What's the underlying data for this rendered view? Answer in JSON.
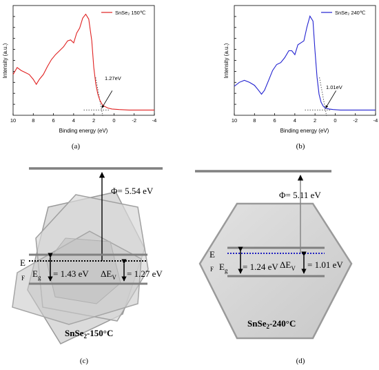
{
  "chart_data": [
    {
      "type": "line",
      "panel": "(a)",
      "xlabel": "Binding energy (eV)",
      "ylabel": "Intensity (a.u.)",
      "xlim": [
        10,
        -4
      ],
      "xticks": [
        "10",
        "8",
        "6",
        "4",
        "2",
        "0",
        "-2",
        "-4"
      ],
      "series": [
        {
          "name": "SnSe₂ 150℃",
          "color": "#e02020",
          "x": [
            10,
            9.6,
            9.2,
            8.8,
            8.4,
            8.0,
            7.7,
            7.4,
            7.0,
            6.6,
            6.2,
            5.8,
            5.4,
            5.0,
            4.6,
            4.3,
            4.0,
            3.7,
            3.4,
            3.1,
            2.8,
            2.5,
            2.2,
            2.0,
            1.8,
            1.6,
            1.4,
            1.2,
            1.0,
            0.6,
            0.2,
            -0.5,
            -1.5,
            -2.5,
            -4
          ],
          "y": [
            0.38,
            0.45,
            0.42,
            0.4,
            0.38,
            0.33,
            0.28,
            0.33,
            0.38,
            0.46,
            0.53,
            0.58,
            0.62,
            0.66,
            0.72,
            0.73,
            0.7,
            0.8,
            0.85,
            0.95,
            0.99,
            0.94,
            0.72,
            0.45,
            0.28,
            0.18,
            0.12,
            0.08,
            0.06,
            0.04,
            0.03,
            0.025,
            0.02,
            0.02,
            0.02
          ]
        }
      ],
      "annotation": {
        "label": "1.27eV",
        "x": 1.27
      },
      "baseline_dotted": {
        "from_x": 3.0,
        "to_x": 0.5
      }
    },
    {
      "type": "line",
      "panel": "(b)",
      "xlabel": "Binding energy (eV)",
      "ylabel": "Intensity (a.u.)",
      "xlim": [
        10,
        -4
      ],
      "xticks": [
        "10",
        "8",
        "6",
        "4",
        "2",
        "0",
        "-2",
        "-4"
      ],
      "series": [
        {
          "name": "SnSe₂ 240℃",
          "color": "#2020d0",
          "x": [
            10,
            9.5,
            9.0,
            8.5,
            8.0,
            7.6,
            7.3,
            7.0,
            6.6,
            6.2,
            5.8,
            5.4,
            5.0,
            4.6,
            4.3,
            4.0,
            3.7,
            3.4,
            3.1,
            2.8,
            2.5,
            2.2,
            2.0,
            1.8,
            1.6,
            1.4,
            1.2,
            1.0,
            0.6,
            0.2,
            -0.5,
            -1.5,
            -2.5,
            -4
          ],
          "y": [
            0.26,
            0.3,
            0.32,
            0.3,
            0.27,
            0.22,
            0.18,
            0.22,
            0.32,
            0.42,
            0.48,
            0.5,
            0.55,
            0.62,
            0.62,
            0.58,
            0.68,
            0.7,
            0.72,
            0.86,
            0.97,
            0.92,
            0.62,
            0.35,
            0.18,
            0.1,
            0.06,
            0.04,
            0.03,
            0.025,
            0.02,
            0.02,
            0.02,
            0.02
          ]
        }
      ],
      "annotation": {
        "label": "1.01eV",
        "x": 1.01
      },
      "baseline_dotted": {
        "from_x": 3.0,
        "to_x": 0.5
      }
    }
  ],
  "panels": {
    "a_label": "(a)",
    "b_label": "(b)",
    "c_label": "(c)",
    "d_label": "(d)"
  },
  "diagram_c": {
    "phi": "Φ= 5.54 eV",
    "ef_main": "E",
    "ef_sub": "F",
    "eg_main": "E",
    "eg_sub": "g",
    "eg_value": "= 1.43 eV",
    "dev_main": "ΔE",
    "dev_sub": "V",
    "dev_value": "= 1.27 eV",
    "title_main": "SnSe",
    "title_sub": "2",
    "title_rest": "-150°C"
  },
  "diagram_d": {
    "phi": "Φ= 5.11 eV",
    "ef_main": "E",
    "ef_sub": "F",
    "eg_main": "E",
    "eg_sub": "g",
    "eg_value": "= 1.24 eV",
    "dev_main": "ΔE",
    "dev_sub": "V",
    "dev_value": "= 1.01 eV",
    "title_main": "SnSe",
    "title_sub": "2",
    "title_rest": "-240°C"
  },
  "colors": {
    "series_a": "#e02020",
    "series_b": "#2020d0",
    "ef_dotted_c": "#000000",
    "ef_dotted_d": "#2020c0",
    "band": "#808080",
    "hex_fill": "#d6d6d6"
  }
}
